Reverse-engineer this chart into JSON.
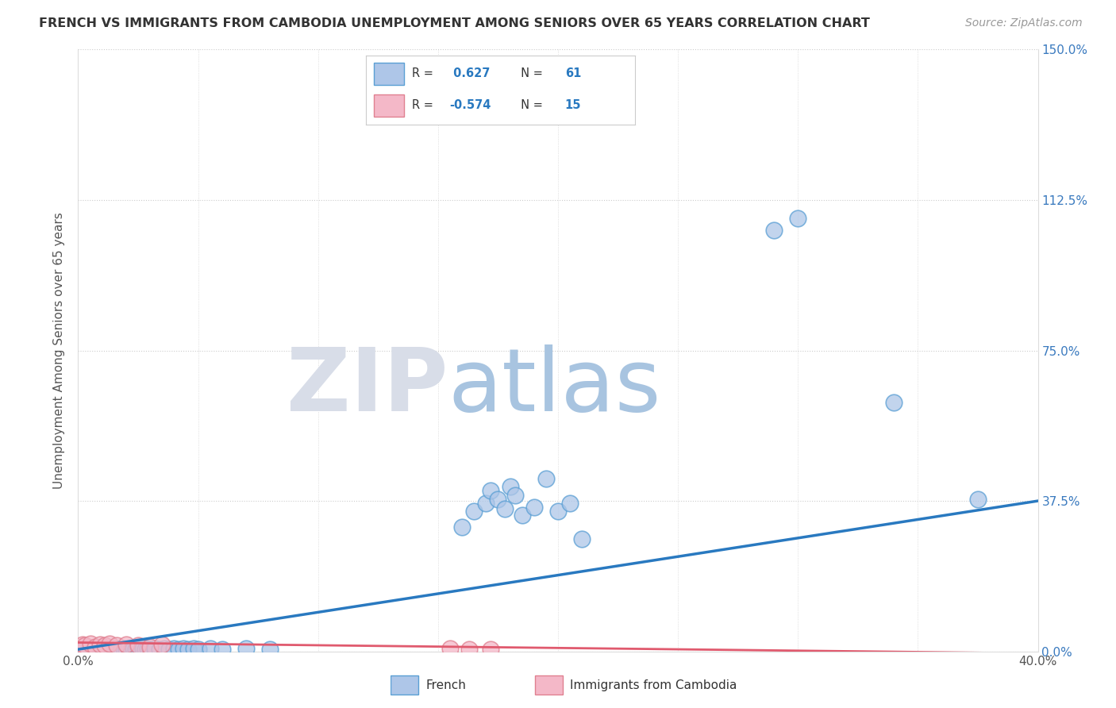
{
  "title": "FRENCH VS IMMIGRANTS FROM CAMBODIA UNEMPLOYMENT AMONG SENIORS OVER 65 YEARS CORRELATION CHART",
  "source": "Source: ZipAtlas.com",
  "ylabel": "Unemployment Among Seniors over 65 years",
  "xlim": [
    0.0,
    0.4
  ],
  "ylim": [
    0.0,
    1.5
  ],
  "xticks": [
    0.0,
    0.05,
    0.1,
    0.15,
    0.2,
    0.25,
    0.3,
    0.35,
    0.4
  ],
  "yticks": [
    0.0,
    0.375,
    0.75,
    1.125,
    1.5
  ],
  "yticklabels_right": [
    "0.0%",
    "37.5%",
    "75.0%",
    "112.5%",
    "150.0%"
  ],
  "french_R": 0.627,
  "french_N": 61,
  "cambodia_R": -0.574,
  "cambodia_N": 15,
  "french_color": "#aec6e8",
  "french_edge_color": "#5a9fd4",
  "french_line_color": "#2979c0",
  "cambodia_color": "#f4b8c8",
  "cambodia_edge_color": "#e08090",
  "cambodia_line_color": "#e05a6e",
  "watermark_zip_color": "#d8dde8",
  "watermark_atlas_color": "#a8c4e0",
  "background_color": "#ffffff",
  "grid_color": "#cccccc",
  "title_color": "#333333",
  "french_x": [
    0.002,
    0.003,
    0.004,
    0.005,
    0.006,
    0.007,
    0.008,
    0.009,
    0.01,
    0.011,
    0.012,
    0.013,
    0.014,
    0.015,
    0.016,
    0.017,
    0.018,
    0.019,
    0.02,
    0.021,
    0.022,
    0.023,
    0.024,
    0.025,
    0.026,
    0.027,
    0.028,
    0.029,
    0.03,
    0.032,
    0.034,
    0.036,
    0.038,
    0.04,
    0.042,
    0.044,
    0.046,
    0.048,
    0.05,
    0.055,
    0.06,
    0.07,
    0.08,
    0.16,
    0.165,
    0.17,
    0.172,
    0.175,
    0.178,
    0.18,
    0.182,
    0.185,
    0.19,
    0.195,
    0.2,
    0.205,
    0.21,
    0.29,
    0.3,
    0.34,
    0.375
  ],
  "french_y": [
    0.005,
    0.008,
    0.006,
    0.007,
    0.005,
    0.009,
    0.006,
    0.007,
    0.008,
    0.006,
    0.005,
    0.007,
    0.006,
    0.008,
    0.005,
    0.007,
    0.006,
    0.008,
    0.005,
    0.007,
    0.006,
    0.008,
    0.005,
    0.007,
    0.006,
    0.008,
    0.005,
    0.007,
    0.006,
    0.008,
    0.005,
    0.007,
    0.006,
    0.008,
    0.005,
    0.007,
    0.006,
    0.008,
    0.005,
    0.007,
    0.006,
    0.008,
    0.005,
    0.31,
    0.35,
    0.37,
    0.4,
    0.38,
    0.355,
    0.41,
    0.39,
    0.34,
    0.36,
    0.43,
    0.35,
    0.37,
    0.28,
    1.05,
    1.08,
    0.62,
    0.38
  ],
  "cambodia_x": [
    0.002,
    0.003,
    0.005,
    0.007,
    0.009,
    0.011,
    0.013,
    0.016,
    0.02,
    0.025,
    0.03,
    0.035,
    0.155,
    0.163,
    0.172
  ],
  "cambodia_y": [
    0.018,
    0.015,
    0.02,
    0.012,
    0.018,
    0.015,
    0.02,
    0.016,
    0.018,
    0.015,
    0.012,
    0.018,
    0.008,
    0.005,
    0.005
  ],
  "french_line_x": [
    0.0,
    0.4
  ],
  "french_line_y": [
    0.005,
    0.375
  ],
  "cambodia_line_x": [
    0.0,
    0.4
  ],
  "cambodia_line_y": [
    0.022,
    -0.005
  ]
}
